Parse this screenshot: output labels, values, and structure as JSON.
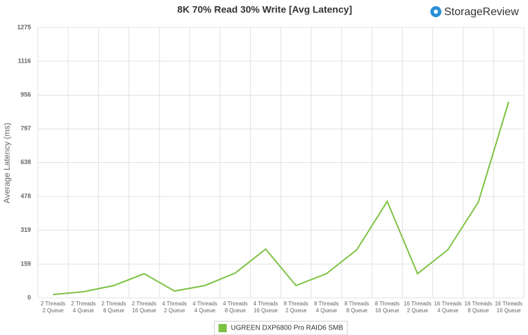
{
  "chart_data": {
    "type": "line",
    "title": "8K 70% Read 30% Write [Avg Latency]",
    "y_label": "Average Latency (ms)",
    "categories": [
      [
        "2 Threads",
        "2 Queue"
      ],
      [
        "2 Threads",
        "4 Queue"
      ],
      [
        "2 Threads",
        "8 Queue"
      ],
      [
        "2 Threads",
        "16 Queue"
      ],
      [
        "4 Threads",
        "2 Queue"
      ],
      [
        "4 Threads",
        "4 Queue"
      ],
      [
        "4 Threads",
        "8 Queue"
      ],
      [
        "4 Threads",
        "16 Queue"
      ],
      [
        "8 Threads",
        "2 Queue"
      ],
      [
        "8 Threads",
        "4 Queue"
      ],
      [
        "8 Threads",
        "8 Queue"
      ],
      [
        "8 Threads",
        "16 Queue"
      ],
      [
        "16 Threads",
        "2 Queue"
      ],
      [
        "16 Threads",
        "4 Queue"
      ],
      [
        "16 Threads",
        "8 Queue"
      ],
      [
        "16 Threads",
        "16 Queue"
      ]
    ],
    "series": [
      {
        "name": "UGREEN DXP6800 Pro RAID6 SMB",
        "color": "#7dc242",
        "values": [
          16,
          29,
          58,
          114,
          32,
          58,
          117,
          230,
          58,
          114,
          227,
          455,
          114,
          227,
          451,
          925
        ]
      }
    ],
    "ylim": [
      0,
      1275
    ],
    "yticks": [
      0,
      159,
      319,
      478,
      638,
      797,
      956,
      1116,
      1275
    ],
    "grid": true,
    "legend": "bottom"
  },
  "logo": "StorageReview"
}
